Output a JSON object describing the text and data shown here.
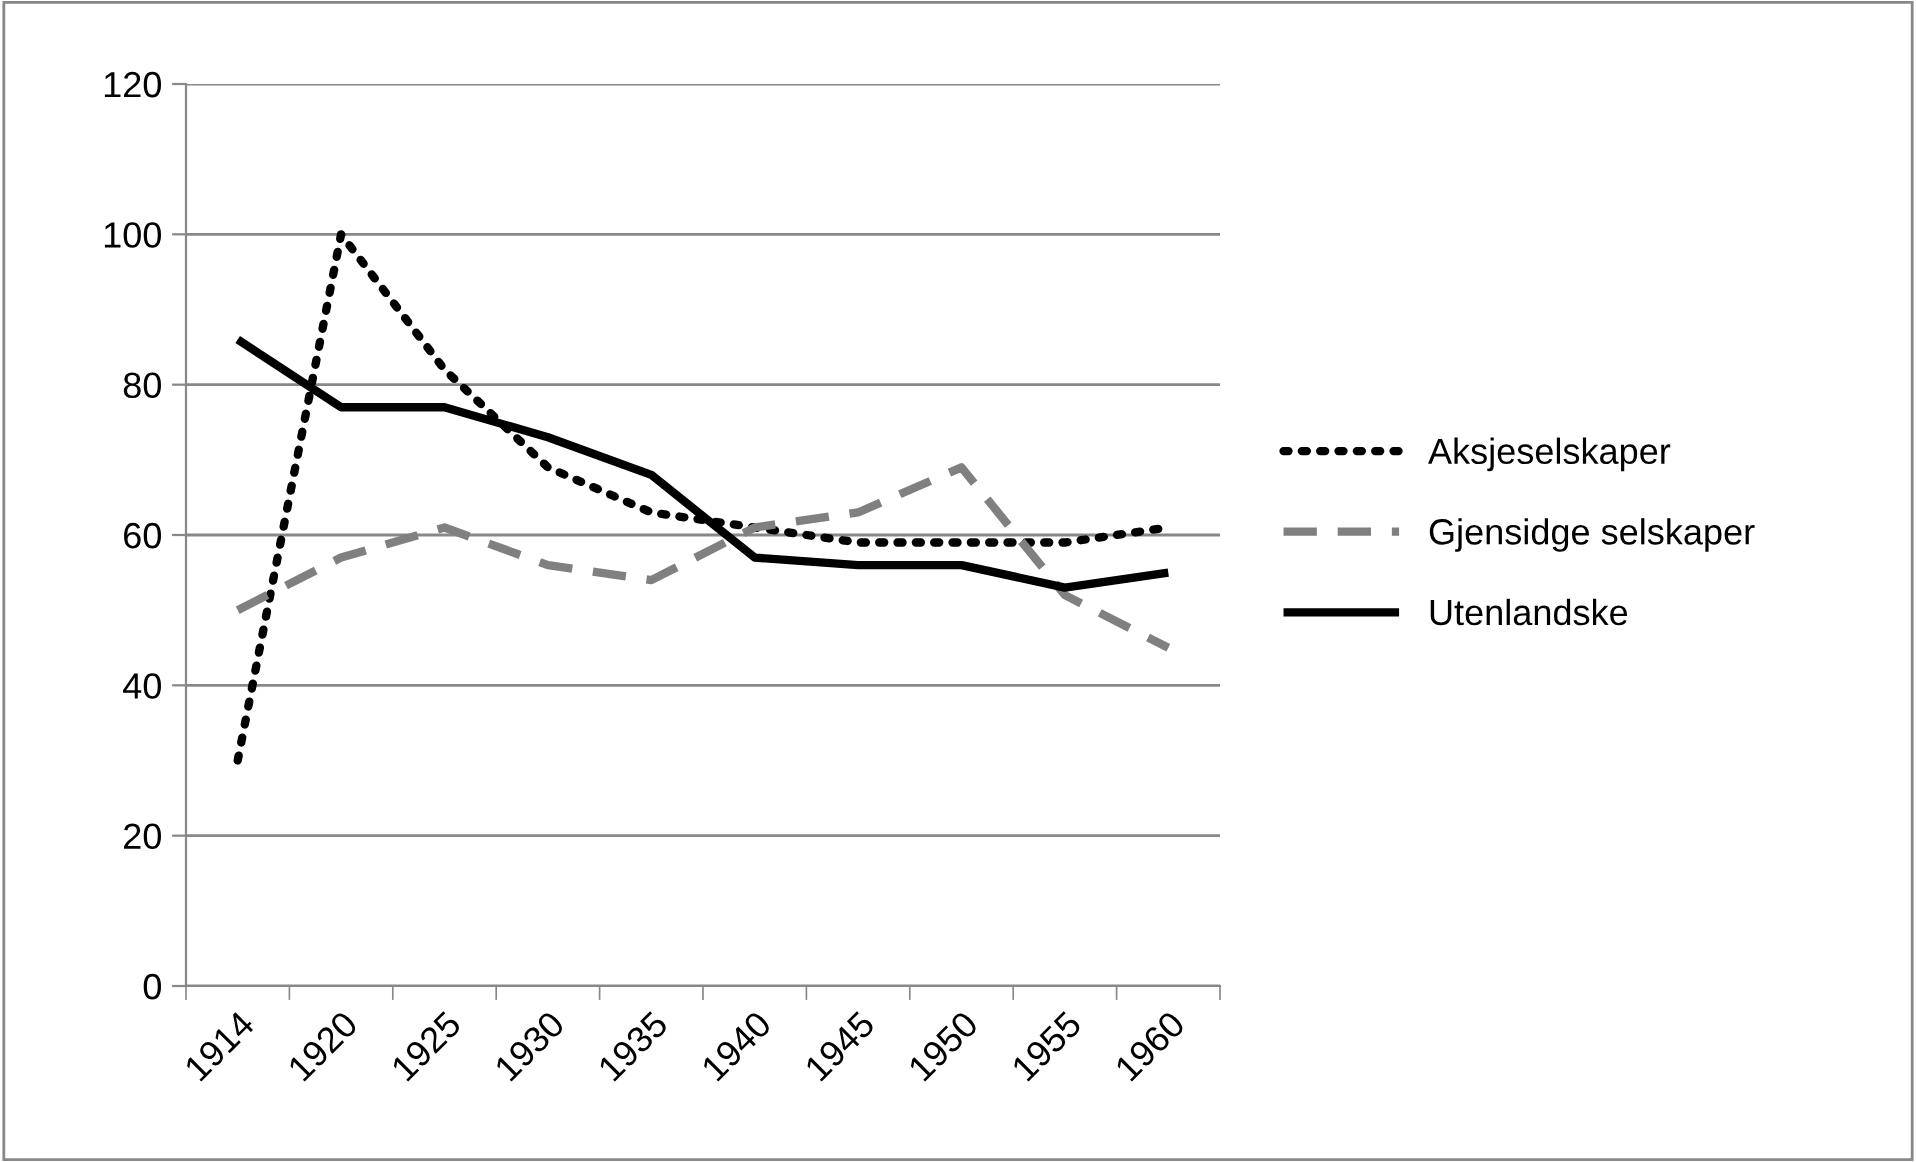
{
  "chart_data": {
    "type": "line",
    "categories": [
      "1914",
      "1920",
      "1925",
      "1930",
      "1935",
      "1940",
      "1945",
      "1950",
      "1955",
      "1960"
    ],
    "series": [
      {
        "name": "Aksjeselskaper",
        "color": "#000000",
        "line_style": "dotted",
        "values": [
          30,
          100,
          82,
          69,
          63,
          61,
          59,
          59,
          59,
          61
        ]
      },
      {
        "name": "Gjensidge selskaper",
        "color": "#808080",
        "line_style": "dashed",
        "values": [
          50,
          57,
          61,
          56,
          54,
          61,
          63,
          69,
          52,
          45
        ]
      },
      {
        "name": "Utenlandske",
        "color": "#000000",
        "line_style": "solid",
        "values": [
          86,
          77,
          77,
          73,
          68,
          57,
          56,
          56,
          53,
          55
        ]
      }
    ],
    "ylim": [
      0,
      120
    ],
    "yticks": [
      0,
      20,
      40,
      60,
      80,
      100,
      120
    ],
    "grid": "y",
    "legend": "right",
    "marker": "none"
  }
}
